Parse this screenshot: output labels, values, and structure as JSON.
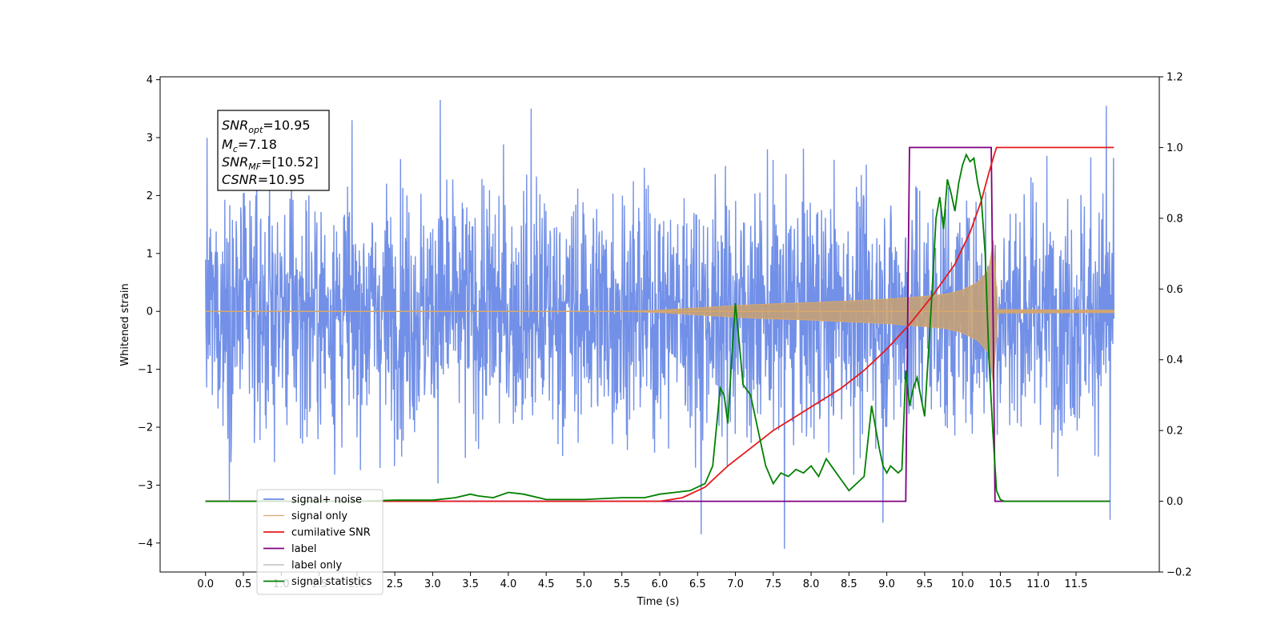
{
  "chart_data": {
    "type": "line",
    "title": "",
    "xlabel": "Time (s)",
    "ylabel": "Whitened strain",
    "y2label": "",
    "xlim": [
      -0.6,
      12.6
    ],
    "ylim": [
      -4.5,
      4.05
    ],
    "y2lim": [
      -0.2,
      1.2
    ],
    "x_ticks": [
      0.0,
      0.5,
      1.0,
      1.5,
      2.0,
      2.5,
      3.0,
      3.5,
      4.0,
      4.5,
      5.0,
      5.5,
      6.0,
      6.5,
      7.0,
      7.5,
      8.0,
      8.5,
      9.0,
      9.5,
      10.0,
      10.5,
      11.0,
      11.5
    ],
    "x_tick_labels": [
      "0.0",
      "0.5",
      "1.0",
      "1.5",
      "2.0",
      "2.5",
      "3.0",
      "3.5",
      "4.0",
      "4.5",
      "5.0",
      "5.5",
      "6.0",
      "6.5",
      "7.0",
      "7.5",
      "8.0",
      "8.5",
      "9.0",
      "9.5",
      "10.0",
      "10.5",
      "11.0",
      "11.5"
    ],
    "y_ticks": [
      4,
      3,
      2,
      1,
      0,
      -1,
      -2,
      -3,
      -4
    ],
    "y_tick_labels": [
      "4",
      "3",
      "2",
      "1",
      "0",
      "−1",
      "−2",
      "−3",
      "−4"
    ],
    "y2_ticks": [
      1.2,
      1.0,
      0.8,
      0.6,
      0.4,
      0.2,
      0.0,
      -0.2
    ],
    "y2_tick_labels": [
      "1.2",
      "1.0",
      "0.8",
      "0.6",
      "0.4",
      "0.2",
      "0.0",
      "−0.2"
    ],
    "grid": false,
    "legend_position": "lower-left",
    "annotation": {
      "snr_opt": "10.95",
      "mc": "7.18",
      "snr_mf": "[10.52]",
      "csnr": "10.95"
    },
    "series": [
      {
        "name": "signal+ noise",
        "axis": "left",
        "color": "#6a8ae6",
        "t_range": [
          0,
          12
        ],
        "amplitude_range": [
          -4.1,
          3.65
        ],
        "peaks": [
          [
            3.1,
            3.65
          ],
          [
            4.3,
            3.5
          ],
          [
            11.9,
            3.55
          ],
          [
            7.65,
            -4.1
          ],
          [
            6.55,
            -3.85
          ],
          [
            8.95,
            -3.65
          ],
          [
            11.95,
            -3.6
          ]
        ]
      },
      {
        "name": "signal only",
        "axis": "left",
        "color": "#d9a86a",
        "envelope": {
          "t": [
            0.0,
            5.5,
            6.0,
            6.5,
            7.0,
            7.5,
            8.0,
            8.5,
            9.0,
            9.5,
            9.8,
            10.0,
            10.2,
            10.35,
            10.42,
            10.45,
            12.0
          ],
          "amplitude": [
            0.0,
            0.0,
            0.02,
            0.06,
            0.1,
            0.13,
            0.15,
            0.18,
            0.21,
            0.26,
            0.3,
            0.37,
            0.5,
            0.72,
            1.35,
            0.03,
            0.02
          ]
        }
      },
      {
        "name": "cumilative SNR",
        "axis": "right",
        "color": "#e41a1c",
        "x": [
          6.0,
          6.3,
          6.6,
          6.9,
          7.2,
          7.5,
          7.8,
          8.1,
          8.4,
          8.7,
          9.0,
          9.3,
          9.6,
          9.9,
          10.1,
          10.25,
          10.35,
          10.42,
          10.45,
          11.0,
          11.5,
          12.0
        ],
        "y": [
          0.0,
          0.01,
          0.04,
          0.1,
          0.15,
          0.2,
          0.24,
          0.28,
          0.32,
          0.37,
          0.43,
          0.5,
          0.58,
          0.67,
          0.76,
          0.85,
          0.93,
          0.98,
          1.0,
          1.0,
          1.0,
          1.0
        ]
      },
      {
        "name": "label",
        "axis": "right",
        "color": "#800080",
        "x": [
          0.0,
          9.25,
          9.3,
          10.38,
          10.43,
          11.95
        ],
        "y": [
          0.0,
          0.0,
          1.0,
          1.0,
          0.0,
          0.0
        ]
      },
      {
        "name": "label only",
        "axis": "right",
        "color": "#c8c8c8",
        "x": [
          0.0,
          0.0
        ],
        "y": [
          0.0,
          0.0
        ]
      },
      {
        "name": "signal statistics",
        "axis": "right",
        "color": "#008000",
        "x": [
          0.0,
          2.0,
          2.5,
          3.0,
          3.3,
          3.5,
          3.6,
          3.8,
          4.0,
          4.2,
          4.5,
          5.0,
          5.5,
          5.8,
          6.0,
          6.2,
          6.4,
          6.6,
          6.7,
          6.8,
          6.85,
          6.9,
          6.95,
          7.0,
          7.05,
          7.1,
          7.2,
          7.3,
          7.4,
          7.5,
          7.6,
          7.7,
          7.8,
          7.9,
          8.0,
          8.1,
          8.2,
          8.3,
          8.4,
          8.5,
          8.6,
          8.7,
          8.8,
          8.9,
          8.95,
          9.0,
          9.05,
          9.1,
          9.15,
          9.2,
          9.25,
          9.3,
          9.35,
          9.4,
          9.5,
          9.6,
          9.65,
          9.7,
          9.75,
          9.8,
          9.85,
          9.9,
          9.95,
          10.0,
          10.05,
          10.1,
          10.15,
          10.2,
          10.25,
          10.3,
          10.35,
          10.4,
          10.45,
          10.5,
          10.55,
          10.6,
          11.0,
          11.5,
          11.95
        ],
        "y": [
          0.0,
          0.0,
          0.003,
          0.003,
          0.01,
          0.02,
          0.015,
          0.01,
          0.025,
          0.02,
          0.005,
          0.005,
          0.01,
          0.01,
          0.02,
          0.025,
          0.03,
          0.05,
          0.1,
          0.32,
          0.3,
          0.22,
          0.4,
          0.56,
          0.45,
          0.33,
          0.3,
          0.2,
          0.1,
          0.05,
          0.08,
          0.07,
          0.09,
          0.08,
          0.1,
          0.07,
          0.12,
          0.09,
          0.06,
          0.03,
          0.05,
          0.07,
          0.27,
          0.15,
          0.1,
          0.08,
          0.1,
          0.09,
          0.08,
          0.09,
          0.37,
          0.27,
          0.32,
          0.35,
          0.24,
          0.6,
          0.8,
          0.86,
          0.77,
          0.91,
          0.87,
          0.82,
          0.9,
          0.95,
          0.98,
          0.96,
          0.97,
          0.9,
          0.85,
          0.7,
          0.4,
          0.2,
          0.03,
          0.005,
          0.0,
          0.0,
          0.0,
          0.0,
          0.0
        ]
      }
    ]
  }
}
